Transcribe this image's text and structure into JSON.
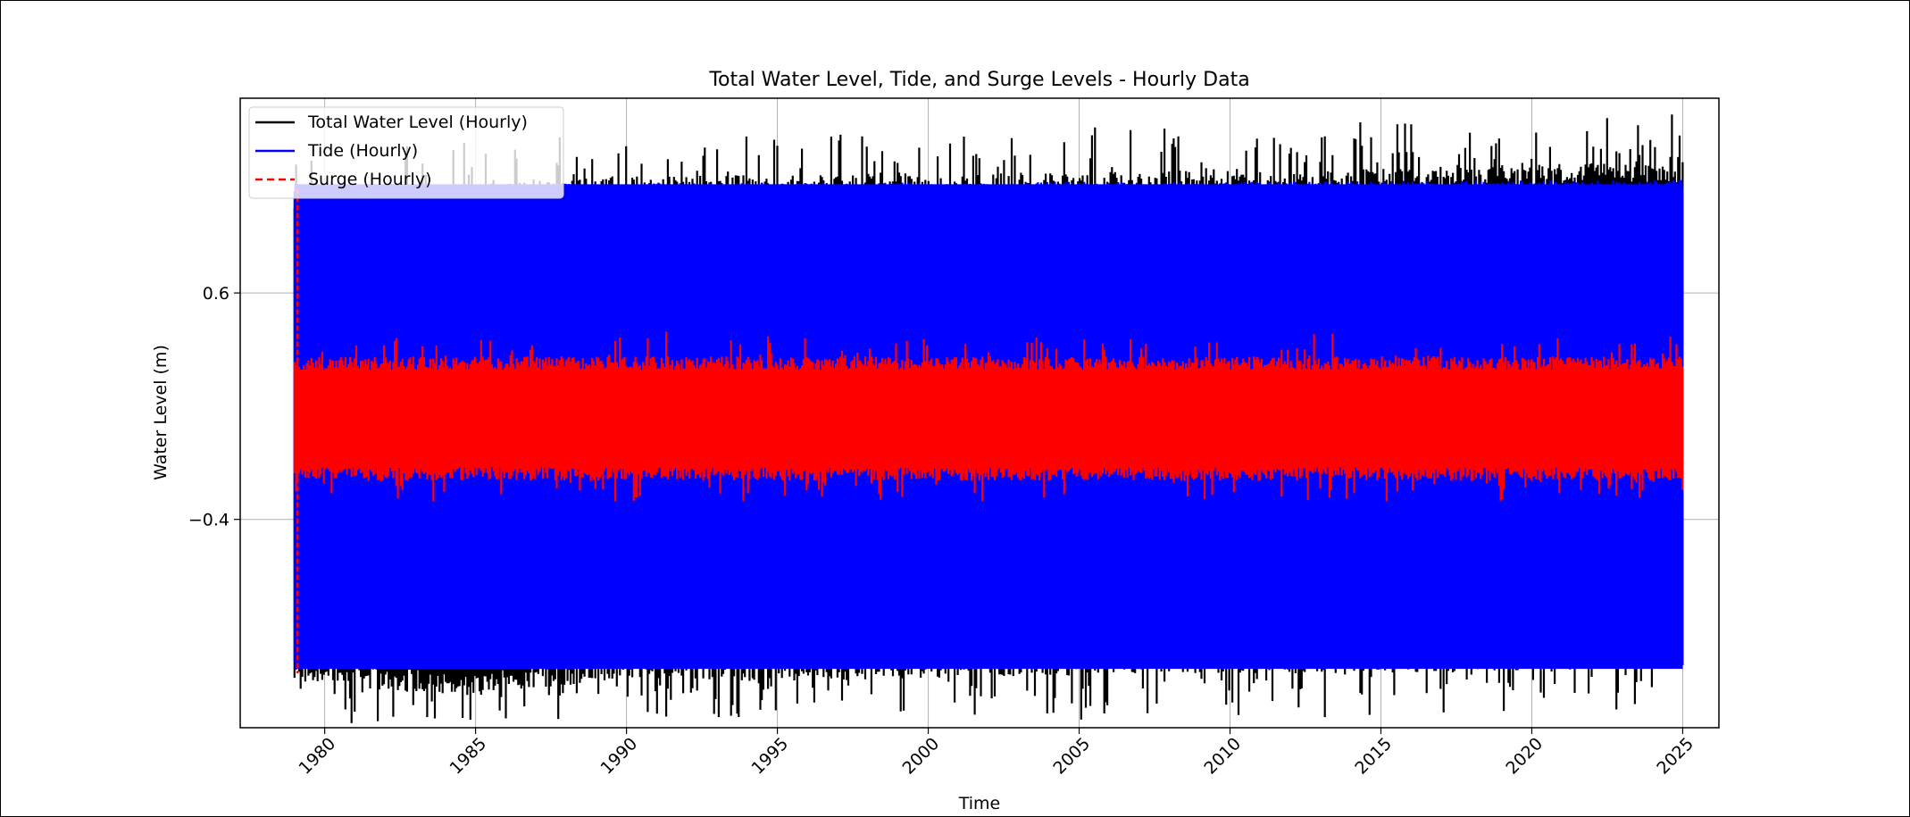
{
  "chart_data": {
    "type": "line",
    "title": "Total Water Level, Tide, and Surge Levels - Hourly Data",
    "xlabel": "Time",
    "ylabel": "Water Level (m)",
    "xlim": [
      1977.2,
      2026.2
    ],
    "ylim": [
      -1.32,
      1.46
    ],
    "x_ticks": [
      1980,
      1985,
      1990,
      1995,
      2000,
      2005,
      2010,
      2015,
      2020,
      2025
    ],
    "x_tick_labels": [
      "1980",
      "1985",
      "1990",
      "1995",
      "2000",
      "2005",
      "2010",
      "2015",
      "2020",
      "2025"
    ],
    "y_ticks": [
      0.6,
      -0.4
    ],
    "y_tick_labels": [
      "0.6",
      "−0.4"
    ],
    "grid": true,
    "legend_position": "top-left",
    "data_range": [
      1979.0,
      2025.0
    ],
    "series": [
      {
        "name": "Total Water Level (Hourly)",
        "color": "#000000",
        "style": "solid",
        "envelope": [
          [
            1979,
            -1.13,
            1.04
          ],
          [
            1985,
            -1.18,
            1.08
          ],
          [
            1990,
            -1.1,
            1.12
          ],
          [
            1995,
            -1.12,
            1.12
          ],
          [
            2000,
            -1.1,
            1.12
          ],
          [
            2005,
            -1.09,
            1.13
          ],
          [
            2010,
            -1.08,
            1.15
          ],
          [
            2015,
            -1.08,
            1.15
          ],
          [
            2020,
            -1.07,
            1.17
          ],
          [
            2025,
            -1.05,
            1.18
          ]
        ],
        "peak_max": 1.48,
        "peak_min": -1.3
      },
      {
        "name": "Tide (Hourly)",
        "color": "#0000ff",
        "style": "solid",
        "envelope": [
          [
            1979,
            -1.06,
            1.08
          ],
          [
            2025,
            -1.06,
            1.1
          ]
        ]
      },
      {
        "name": "Surge (Hourly)",
        "color": "#ff0000",
        "style": "dashed",
        "envelope": [
          [
            1979,
            -0.23,
            0.32
          ],
          [
            2025,
            -0.23,
            0.32
          ]
        ],
        "peak_max": 0.46,
        "peak_min": -0.32
      }
    ]
  }
}
